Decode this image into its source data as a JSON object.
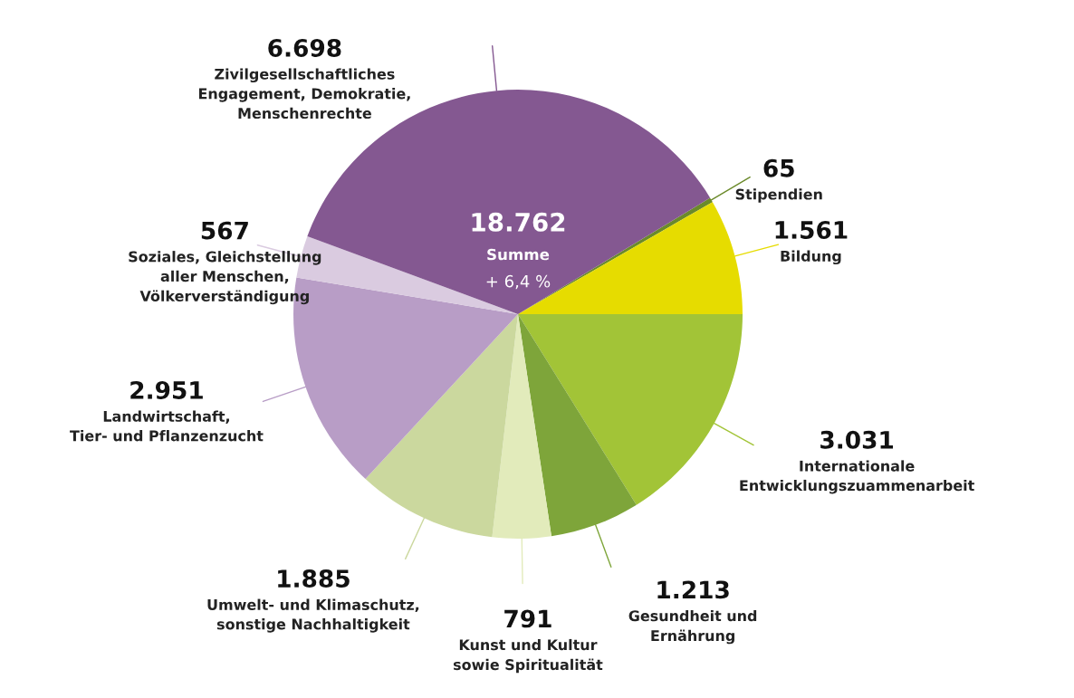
{
  "chart_data": {
    "type": "pie",
    "categories": [
      "Stipendien",
      "Bildung",
      "Internationale\nEntwicklungszuammenarbeit",
      "Gesundheit und\nErnährung",
      "Kunst und Kultur\nsowie Spiritualität",
      "Umwelt- und Klimaschutz,\nsonstige Nachhaltigkeit",
      "Landwirtschaft,\nTier- und Pflanzenzucht",
      "Soziales, Gleichstellung\naller Menschen,\nVölkerverständigung",
      "Zivilgesellschaftliches\nEngagement, Demokratie,\nMenschenrechte"
    ],
    "values": [
      65,
      1561,
      3031,
      1213,
      791,
      1885,
      2951,
      567,
      6698
    ],
    "value_labels": [
      "65",
      "1.561",
      "3.031",
      "1.213",
      "791",
      "1.885",
      "2.951",
      "567",
      "6.698"
    ],
    "colors": [
      "#6b8a2a",
      "#e6dc00",
      "#a2c437",
      "#7ea53a",
      "#e2ebbb",
      "#cbd89e",
      "#b89dc6",
      "#dacbe0",
      "#845891"
    ],
    "annotations": [
      "18.762",
      "Summe",
      "+ 6,4 %"
    ]
  }
}
